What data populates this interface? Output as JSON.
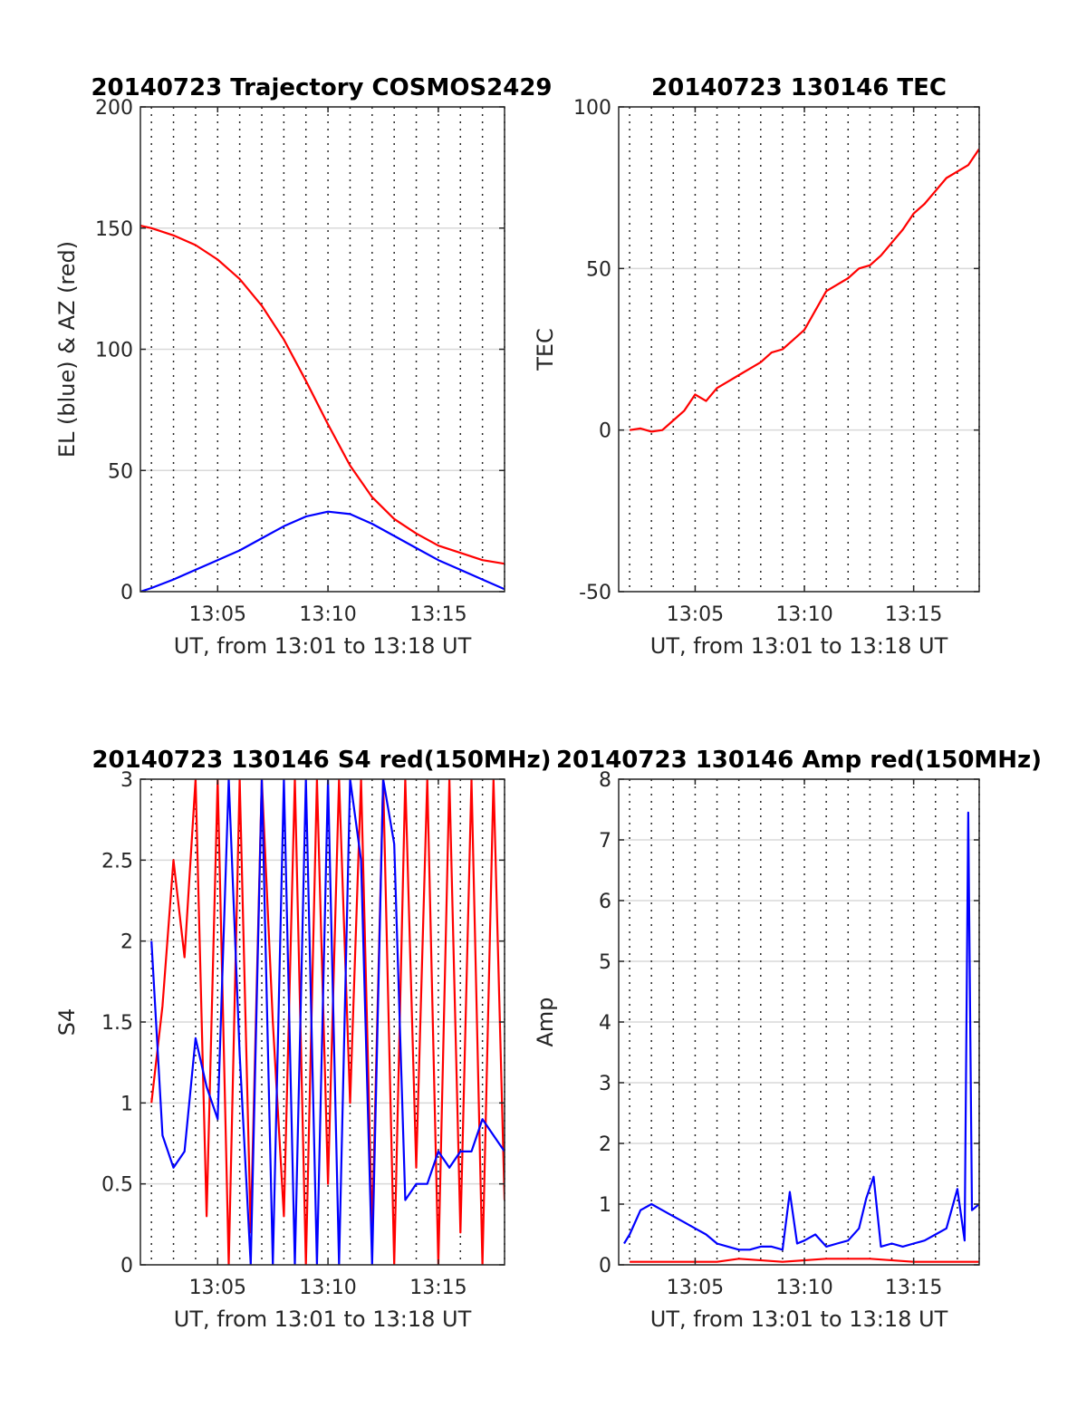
{
  "chart_data": [
    {
      "type": "line",
      "title": "20140723 Trajectory COSMOS2429",
      "xlabel": "UT, from 13:01 to 13:18 UT",
      "ylabel": "EL (blue) & AZ (red)",
      "xlim": [
        "13:01:30",
        "13:18:00"
      ],
      "ylim": [
        0,
        200
      ],
      "yticks": [
        "0",
        "50",
        "100",
        "150",
        "200"
      ],
      "xticks": [
        {
          "value": "13:05",
          "label": "13:05"
        },
        {
          "value": "13:10",
          "label": "13:10"
        },
        {
          "value": "13:15",
          "label": "13:15"
        }
      ],
      "grid": true,
      "series": [
        {
          "key": "az",
          "color": "#ff0000",
          "x": [
            "13:01:30",
            "13:02:00",
            "13:03:00",
            "13:04:00",
            "13:05:00",
            "13:06:00",
            "13:07:00",
            "13:08:00",
            "13:09:00",
            "13:10:00",
            "13:11:00",
            "13:12:00",
            "13:13:00",
            "13:14:00",
            "13:15:00",
            "13:16:00",
            "13:17:00",
            "13:18:00"
          ],
          "values": [
            151,
            150,
            147,
            143,
            137,
            129,
            118,
            104,
            87,
            69,
            52,
            39,
            30,
            24,
            19,
            16,
            13,
            11.5
          ]
        },
        {
          "key": "el",
          "color": "#0000ff",
          "x": [
            "13:01:30",
            "13:02:00",
            "13:03:00",
            "13:04:00",
            "13:05:00",
            "13:06:00",
            "13:07:00",
            "13:08:00",
            "13:09:00",
            "13:10:00",
            "13:11:00",
            "13:12:00",
            "13:13:00",
            "13:14:00",
            "13:15:00",
            "13:16:00",
            "13:17:00",
            "13:18:00"
          ],
          "values": [
            0,
            1.5,
            5,
            9,
            13,
            17,
            22,
            27,
            31,
            33,
            32,
            28,
            23,
            18,
            13,
            9,
            5,
            1
          ]
        }
      ]
    },
    {
      "type": "line",
      "title": "20140723 130146 TEC",
      "xlabel": "UT, from 13:01 to 13:18 UT",
      "ylabel": "TEC",
      "xlim": [
        "13:01:30",
        "13:18:00"
      ],
      "ylim": [
        -50,
        100
      ],
      "yticks": [
        "-50",
        "0",
        "50",
        "100"
      ],
      "xticks": [
        {
          "value": "13:05",
          "label": "13:05"
        },
        {
          "value": "13:10",
          "label": "13:10"
        },
        {
          "value": "13:15",
          "label": "13:15"
        }
      ],
      "grid": true,
      "series": [
        {
          "key": "tec",
          "color": "#ff0000",
          "x": [
            "13:02:00",
            "13:02:30",
            "13:03:00",
            "13:03:30",
            "13:04:00",
            "13:04:30",
            "13:05:00",
            "13:05:30",
            "13:06:00",
            "13:06:30",
            "13:07:00",
            "13:07:30",
            "13:08:00",
            "13:08:30",
            "13:09:00",
            "13:09:30",
            "13:10:00",
            "13:10:30",
            "13:11:00",
            "13:11:30",
            "13:12:00",
            "13:12:30",
            "13:13:00",
            "13:13:30",
            "13:14:00",
            "13:14:30",
            "13:15:00",
            "13:15:30",
            "13:16:00",
            "13:16:30",
            "13:17:00",
            "13:17:30",
            "13:18:00"
          ],
          "values": [
            0,
            0.5,
            -0.5,
            0,
            3,
            6,
            11,
            9,
            13,
            15,
            17,
            19,
            21,
            24,
            25,
            28,
            31,
            37,
            43,
            45,
            47,
            50,
            51,
            54,
            58,
            62,
            67,
            70,
            74,
            78,
            80,
            82,
            87
          ]
        }
      ]
    },
    {
      "type": "line",
      "title": "20140723 130146 S4 red(150MHz)",
      "xlabel": "UT, from 13:01 to 13:18 UT",
      "ylabel": "S4",
      "xlim": [
        "13:01:30",
        "13:18:00"
      ],
      "ylim": [
        0,
        3
      ],
      "yticks": [
        "0",
        "0.5",
        "1",
        "1.5",
        "2",
        "2.5",
        "3"
      ],
      "xticks": [
        {
          "value": "13:05",
          "label": "13:05"
        },
        {
          "value": "13:10",
          "label": "13:10"
        },
        {
          "value": "13:15",
          "label": "13:15"
        }
      ],
      "grid": true,
      "series": [
        {
          "key": "s4_red",
          "color": "#ff0000",
          "x": [
            "13:02:00",
            "13:02:30",
            "13:03:00",
            "13:03:30",
            "13:04:00",
            "13:04:30",
            "13:05:00",
            "13:05:30",
            "13:06:00",
            "13:06:30",
            "13:07:00",
            "13:07:30",
            "13:08:00",
            "13:08:30",
            "13:09:00",
            "13:09:30",
            "13:10:00",
            "13:10:30",
            "13:11:00",
            "13:11:30",
            "13:12:00",
            "13:12:30",
            "13:13:00",
            "13:13:30",
            "13:14:00",
            "13:14:30",
            "13:15:00",
            "13:15:30",
            "13:16:00",
            "13:16:30",
            "13:17:00",
            "13:17:30",
            "13:18:00"
          ],
          "values": [
            1.0,
            1.6,
            2.5,
            1.9,
            3.0,
            0.3,
            3.0,
            0.0,
            3.0,
            0.2,
            3.0,
            1.5,
            0.3,
            3.0,
            0.0,
            3.0,
            0.5,
            3.0,
            1.0,
            3.0,
            0.2,
            3.0,
            0.0,
            3.0,
            0.6,
            3.0,
            0.0,
            3.0,
            0.2,
            3.0,
            0.0,
            3.0,
            0.4
          ]
        },
        {
          "key": "s4_blue",
          "color": "#0000ff",
          "x": [
            "13:02:00",
            "13:02:30",
            "13:03:00",
            "13:03:30",
            "13:04:00",
            "13:04:30",
            "13:05:00",
            "13:05:30",
            "13:06:00",
            "13:06:30",
            "13:07:00",
            "13:07:30",
            "13:08:00",
            "13:08:30",
            "13:09:00",
            "13:09:30",
            "13:10:00",
            "13:10:30",
            "13:11:00",
            "13:11:30",
            "13:12:00",
            "13:12:30",
            "13:13:00",
            "13:13:30",
            "13:14:00",
            "13:14:30",
            "13:15:00",
            "13:15:30",
            "13:16:00",
            "13:16:30",
            "13:17:00",
            "13:17:30",
            "13:18:00"
          ],
          "values": [
            2.0,
            0.8,
            0.6,
            0.7,
            1.4,
            1.1,
            0.9,
            3.0,
            1.3,
            0.0,
            3.0,
            0.0,
            3.0,
            0.0,
            3.0,
            0.0,
            3.0,
            0.0,
            3.0,
            2.5,
            0.0,
            3.0,
            2.6,
            0.4,
            0.5,
            0.5,
            0.7,
            0.6,
            0.7,
            0.7,
            0.9,
            0.8,
            0.7
          ]
        }
      ]
    },
    {
      "type": "line",
      "title": "20140723 130146 Amp red(150MHz)",
      "xlabel": "UT, from 13:01 to 13:18 UT",
      "ylabel": "Amp",
      "xlim": [
        "13:01:30",
        "13:18:00"
      ],
      "ylim": [
        0,
        8
      ],
      "yticks": [
        "0",
        "1",
        "2",
        "3",
        "4",
        "5",
        "6",
        "7",
        "8"
      ],
      "xticks": [
        {
          "value": "13:05",
          "label": "13:05"
        },
        {
          "value": "13:10",
          "label": "13:10"
        },
        {
          "value": "13:15",
          "label": "13:15"
        }
      ],
      "grid": true,
      "series": [
        {
          "key": "amp_red",
          "color": "#ff0000",
          "x": [
            "13:02:00",
            "13:06:00",
            "13:07:00",
            "13:09:00",
            "13:11:00",
            "13:13:00",
            "13:15:00",
            "13:18:00"
          ],
          "values": [
            0.05,
            0.05,
            0.1,
            0.05,
            0.1,
            0.1,
            0.05,
            0.05
          ]
        },
        {
          "key": "amp_blue",
          "color": "#0000ff",
          "x": [
            "13:01:45",
            "13:02:00",
            "13:02:30",
            "13:03:00",
            "13:03:30",
            "13:04:00",
            "13:04:30",
            "13:05:00",
            "13:05:30",
            "13:06:00",
            "13:06:30",
            "13:07:00",
            "13:07:30",
            "13:08:00",
            "13:08:30",
            "13:09:00",
            "13:09:20",
            "13:09:40",
            "13:10:00",
            "13:10:30",
            "13:11:00",
            "13:11:30",
            "13:12:00",
            "13:12:30",
            "13:12:50",
            "13:13:10",
            "13:13:30",
            "13:14:00",
            "13:14:30",
            "13:15:00",
            "13:15:30",
            "13:16:00",
            "13:16:30",
            "13:17:00",
            "13:17:20",
            "13:17:30",
            "13:17:40",
            "13:18:00"
          ],
          "values": [
            0.35,
            0.5,
            0.9,
            1.0,
            0.9,
            0.8,
            0.7,
            0.6,
            0.5,
            0.35,
            0.3,
            0.25,
            0.25,
            0.3,
            0.3,
            0.25,
            1.2,
            0.35,
            0.4,
            0.5,
            0.3,
            0.35,
            0.4,
            0.6,
            1.1,
            1.45,
            0.3,
            0.35,
            0.3,
            0.35,
            0.4,
            0.5,
            0.6,
            1.25,
            0.4,
            7.45,
            0.9,
            1.0
          ]
        }
      ]
    }
  ]
}
